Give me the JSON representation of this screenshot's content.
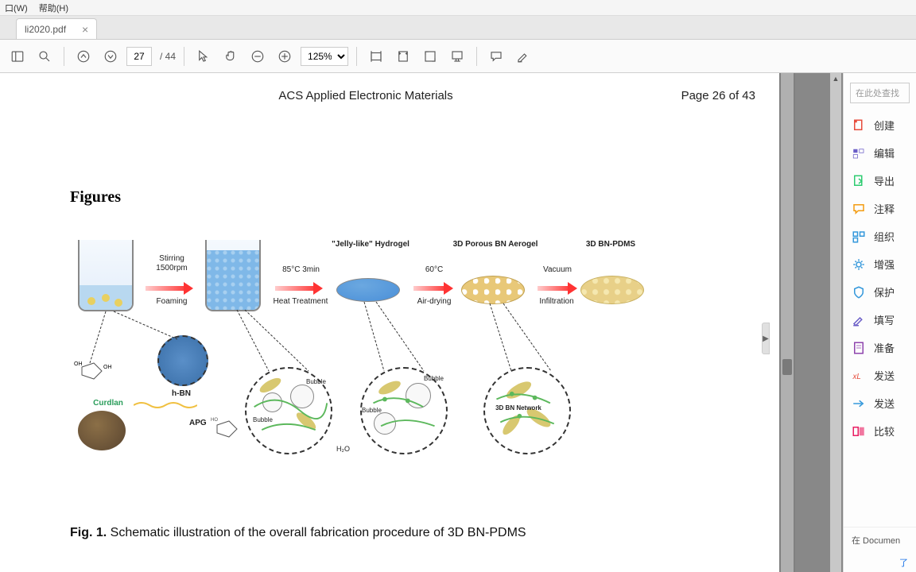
{
  "menu": {
    "window": "口(W)",
    "help": "帮助(H)"
  },
  "tab": {
    "filename": "li2020.pdf"
  },
  "toolbar": {
    "page_current": "27",
    "page_total": "/ 44",
    "zoom": "125%"
  },
  "document": {
    "journal": "ACS Applied Electronic Materials",
    "page_label": "Page 26 of 43",
    "section_heading": "Figures",
    "caption_bold": "Fig. 1.",
    "caption_rest": " Schematic illustration of the overall fabrication procedure of 3D BN-PDMS"
  },
  "figure": {
    "step1": {
      "line1": "Stirring",
      "line2": "1500rpm",
      "line3": "Foaming"
    },
    "step2": {
      "line1": "85°C  3min",
      "line2": "Heat Treatment"
    },
    "step3": {
      "line1": "60°C",
      "line2": "Air-drying"
    },
    "step4": {
      "line1": "Vacuum",
      "line2": "Infiltration"
    },
    "label_hydrogel": "\"Jelly-like\" Hydrogel",
    "label_aerogel": "3D Porous BN Aerogel",
    "label_product": "3D BN-PDMS",
    "label_hbn": "h-BN",
    "label_curdlan": "Curdlan",
    "label_apg": "APG",
    "label_bubble": "Bubble",
    "label_h2o": "H₂O",
    "label_network": "3D BN Network",
    "colors": {
      "beaker1_fill": "#b8d8f0",
      "beaker2_fill": "#7fb8e8",
      "hydrogel": "#4a8fd8",
      "aerogel": "#e8c878",
      "product": "#e8d088",
      "arrow_start": "#ffcccc",
      "arrow_end": "#ff3333",
      "curdlan_text": "#2a9d5a"
    }
  },
  "sidepanel": {
    "search_placeholder": "在此处查找",
    "items": [
      {
        "label": "创建",
        "icon": "create",
        "color": "#e74c3c"
      },
      {
        "label": "编辑",
        "icon": "edit",
        "color": "#6b5ec7"
      },
      {
        "label": "导出",
        "icon": "export",
        "color": "#2ecc71"
      },
      {
        "label": "注释",
        "icon": "comment",
        "color": "#f39c12"
      },
      {
        "label": "组织",
        "icon": "organize",
        "color": "#3498db"
      },
      {
        "label": "增强",
        "icon": "enhance",
        "color": "#3498db"
      },
      {
        "label": "保护",
        "icon": "protect",
        "color": "#3498db"
      },
      {
        "label": "填写",
        "icon": "fill",
        "color": "#6b5ec7"
      },
      {
        "label": "准备",
        "icon": "prepare",
        "color": "#8e44ad"
      },
      {
        "label": "发送",
        "icon": "send1",
        "color": "#e74c3c"
      },
      {
        "label": "发送",
        "icon": "send2",
        "color": "#3498db"
      },
      {
        "label": "比较",
        "icon": "compare",
        "color": "#e91e63"
      }
    ],
    "footer": "在 Documen",
    "link": "了"
  }
}
